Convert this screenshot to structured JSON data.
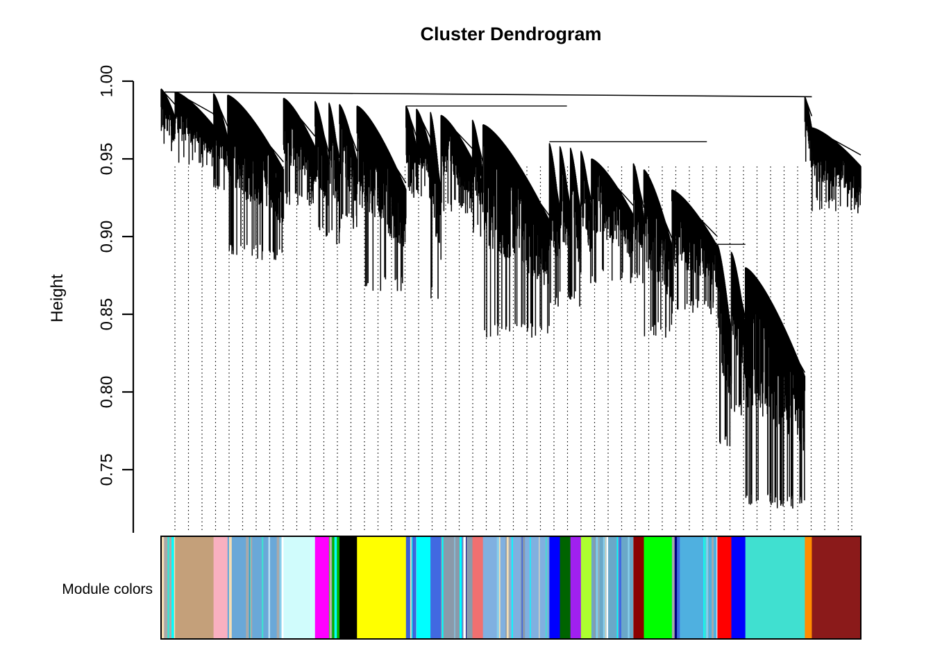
{
  "chart_data": {
    "type": "dendrogram",
    "title": "Cluster Dendrogram",
    "ylabel": "Height",
    "ylim": [
      0.71,
      1.0
    ],
    "yticks": [
      "0.75",
      "0.80",
      "0.85",
      "0.90",
      "0.95",
      "1.00"
    ],
    "grid": false,
    "colorbar_label": "Module colors",
    "clusters": [
      {
        "module": "darkgrey",
        "color": "#a9a9a9",
        "span": [
          0.0,
          0.02
        ],
        "top": 0.995,
        "min": 0.955
      },
      {
        "module": "salmon4",
        "color": "#c4a07a",
        "span": [
          0.02,
          0.075
        ],
        "top": 0.993,
        "min": 0.945
      },
      {
        "module": "lightpink",
        "color": "#f9b0c0",
        "span": [
          0.075,
          0.095
        ],
        "top": 0.992,
        "min": 0.93
      },
      {
        "module": "mixed-a",
        "color": "#6aa8d8",
        "span": [
          0.095,
          0.175
        ],
        "top": 0.991,
        "min": 0.885
      },
      {
        "module": "lightcyan",
        "color": "#d0fcfc",
        "span": [
          0.175,
          0.22
        ],
        "top": 0.989,
        "min": 0.92
      },
      {
        "module": "magenta",
        "color": "#ff00ff",
        "span": [
          0.22,
          0.24
        ],
        "top": 0.987,
        "min": 0.9
      },
      {
        "module": "green-mix",
        "color": "#00b000",
        "span": [
          0.24,
          0.255
        ],
        "top": 0.986,
        "min": 0.895
      },
      {
        "module": "black",
        "color": "#000000",
        "span": [
          0.255,
          0.28
        ],
        "top": 0.985,
        "min": 0.905
      },
      {
        "module": "yellow",
        "color": "#ffff00",
        "span": [
          0.28,
          0.35
        ],
        "top": 0.984,
        "min": 0.865
      },
      {
        "module": "blue-mix",
        "color": "#3a5fd8",
        "span": [
          0.35,
          0.365
        ],
        "top": 0.984,
        "min": 0.925
      },
      {
        "module": "cyan",
        "color": "#00ffff",
        "span": [
          0.365,
          0.385
        ],
        "top": 0.982,
        "min": 0.925
      },
      {
        "module": "royalblue",
        "color": "#4169e1",
        "span": [
          0.385,
          0.4
        ],
        "top": 0.98,
        "min": 0.86
      },
      {
        "module": "grey-mix",
        "color": "#8a9aaa",
        "span": [
          0.4,
          0.445
        ],
        "top": 0.978,
        "min": 0.915
      },
      {
        "module": "salmon",
        "color": "#f07070",
        "span": [
          0.445,
          0.46
        ],
        "top": 0.975,
        "min": 0.9
      },
      {
        "module": "skyblue-mix",
        "color": "#80b0e0",
        "span": [
          0.46,
          0.555
        ],
        "top": 0.972,
        "min": 0.835
      },
      {
        "module": "blue",
        "color": "#0000ff",
        "span": [
          0.555,
          0.57
        ],
        "top": 0.96,
        "min": 0.855
      },
      {
        "module": "darkgreen",
        "color": "#006400",
        "span": [
          0.57,
          0.585
        ],
        "top": 0.958,
        "min": 0.86
      },
      {
        "module": "purple",
        "color": "#a020f0",
        "span": [
          0.585,
          0.6
        ],
        "top": 0.957,
        "min": 0.855
      },
      {
        "module": "greenyellow",
        "color": "#adff2f",
        "span": [
          0.6,
          0.615
        ],
        "top": 0.955,
        "min": 0.87
      },
      {
        "module": "steelblue-mix",
        "color": "#6aa8c8",
        "span": [
          0.615,
          0.675
        ],
        "top": 0.95,
        "min": 0.87
      },
      {
        "module": "darkred",
        "color": "#8b0000",
        "span": [
          0.675,
          0.69
        ],
        "top": 0.947,
        "min": 0.87
      },
      {
        "module": "green",
        "color": "#00ff00",
        "span": [
          0.69,
          0.73
        ],
        "top": 0.943,
        "min": 0.835
      },
      {
        "module": "lightblue-mix",
        "color": "#4fb0e0",
        "span": [
          0.73,
          0.795
        ],
        "top": 0.93,
        "min": 0.85
      },
      {
        "module": "red",
        "color": "#ff0000",
        "span": [
          0.795,
          0.815
        ],
        "top": 0.895,
        "min": 0.765
      },
      {
        "module": "blue2",
        "color": "#0000ff",
        "span": [
          0.815,
          0.835
        ],
        "top": 0.89,
        "min": 0.785
      },
      {
        "module": "turquoise",
        "color": "#40e0d0",
        "span": [
          0.835,
          0.92
        ],
        "top": 0.88,
        "min": 0.725
      },
      {
        "module": "darkorange",
        "color": "#ff8c00",
        "span": [
          0.92,
          0.93
        ],
        "top": 0.99,
        "min": 0.945
      },
      {
        "module": "brown",
        "color": "#8b1a1a",
        "span": [
          0.93,
          1.0
        ],
        "top": 0.97,
        "min": 0.915
      }
    ]
  }
}
